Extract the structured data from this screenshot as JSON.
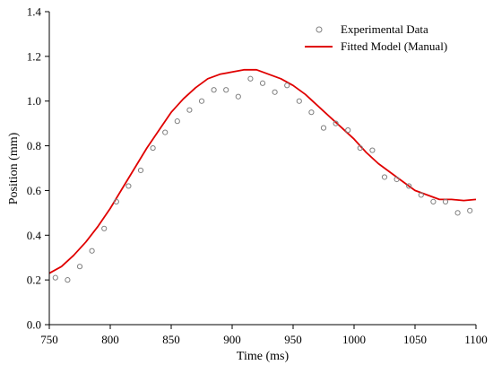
{
  "chart_data": {
    "type": "scatter",
    "xlabel": "Time (ms)",
    "ylabel": "Position (mm)",
    "xlim": [
      750,
      1100
    ],
    "ylim": [
      0.0,
      1.4
    ],
    "x_ticks": [
      "750",
      "800",
      "850",
      "900",
      "950",
      "1000",
      "1050",
      "1100"
    ],
    "y_ticks": [
      "0.0",
      "0.2",
      "0.4",
      "0.6",
      "0.8",
      "1.0",
      "1.2",
      "1.4"
    ],
    "grid": false,
    "legend_position": "top-right",
    "series": [
      {
        "name": "Experimental Data",
        "kind": "scatter",
        "color": "#808080",
        "points": [
          [
            755,
            0.21
          ],
          [
            765,
            0.2
          ],
          [
            775,
            0.26
          ],
          [
            785,
            0.33
          ],
          [
            795,
            0.43
          ],
          [
            805,
            0.55
          ],
          [
            815,
            0.62
          ],
          [
            825,
            0.69
          ],
          [
            835,
            0.79
          ],
          [
            845,
            0.86
          ],
          [
            855,
            0.91
          ],
          [
            865,
            0.96
          ],
          [
            875,
            1.0
          ],
          [
            885,
            1.05
          ],
          [
            895,
            1.05
          ],
          [
            905,
            1.02
          ],
          [
            915,
            1.1
          ],
          [
            925,
            1.08
          ],
          [
            935,
            1.04
          ],
          [
            945,
            1.07
          ],
          [
            955,
            1.0
          ],
          [
            965,
            0.95
          ],
          [
            975,
            0.88
          ],
          [
            985,
            0.9
          ],
          [
            995,
            0.87
          ],
          [
            1005,
            0.79
          ],
          [
            1015,
            0.78
          ],
          [
            1025,
            0.66
          ],
          [
            1035,
            0.65
          ],
          [
            1045,
            0.62
          ],
          [
            1055,
            0.58
          ],
          [
            1065,
            0.55
          ],
          [
            1075,
            0.55
          ],
          [
            1085,
            0.5
          ],
          [
            1095,
            0.51
          ]
        ]
      },
      {
        "name": "Fitted Model (Manual)",
        "kind": "line",
        "color": "#e00000",
        "points": [
          [
            750,
            0.23
          ],
          [
            760,
            0.26
          ],
          [
            770,
            0.31
          ],
          [
            780,
            0.37
          ],
          [
            790,
            0.44
          ],
          [
            800,
            0.52
          ],
          [
            810,
            0.61
          ],
          [
            820,
            0.7
          ],
          [
            830,
            0.79
          ],
          [
            840,
            0.87
          ],
          [
            850,
            0.95
          ],
          [
            860,
            1.01
          ],
          [
            870,
            1.06
          ],
          [
            880,
            1.1
          ],
          [
            890,
            1.12
          ],
          [
            900,
            1.13
          ],
          [
            910,
            1.14
          ],
          [
            915,
            1.14
          ],
          [
            920,
            1.14
          ],
          [
            930,
            1.12
          ],
          [
            940,
            1.1
          ],
          [
            950,
            1.07
          ],
          [
            960,
            1.03
          ],
          [
            970,
            0.98
          ],
          [
            980,
            0.93
          ],
          [
            990,
            0.88
          ],
          [
            1000,
            0.83
          ],
          [
            1010,
            0.77
          ],
          [
            1020,
            0.72
          ],
          [
            1030,
            0.68
          ],
          [
            1040,
            0.64
          ],
          [
            1050,
            0.6
          ],
          [
            1060,
            0.58
          ],
          [
            1070,
            0.56
          ],
          [
            1080,
            0.56
          ],
          [
            1090,
            0.555
          ],
          [
            1100,
            0.56
          ]
        ]
      }
    ]
  }
}
